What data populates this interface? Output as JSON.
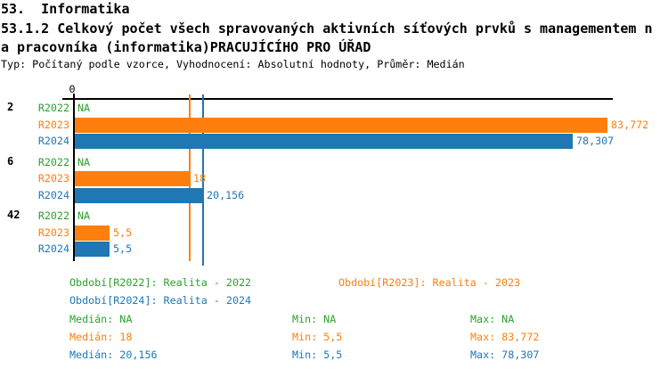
{
  "header": {
    "section_title": "53.  Informatika",
    "indicator_line1": "53.1.2 Celkový počet všech spravovaných aktivních síťových prvků s managementem n",
    "indicator_line2": "a pracovníka (informatika)PRACUJÍCÍHO PRO ÚŘAD",
    "meta": "Typ: Počítaný podle vzorce, Vyhodnocení: Absolutní hodnoty, Průměr: Medián"
  },
  "colors": {
    "green": "#2ca02c",
    "orange": "#ff7f0e",
    "blue": "#1f77b4",
    "axis": "#000000"
  },
  "chart_data": {
    "type": "bar",
    "orientation": "horizontal",
    "categories": [
      "2",
      "6",
      "42"
    ],
    "na_text": "NA",
    "x_axis": {
      "tick_labels": [
        "0"
      ],
      "xlim": [
        0,
        84.6
      ],
      "grid": false
    },
    "series": [
      {
        "name": "R2022",
        "color": "#2ca02c",
        "values": [
          null,
          null,
          null
        ],
        "value_labels": [
          "NA",
          "NA",
          "NA"
        ]
      },
      {
        "name": "R2023",
        "color": "#ff7f0e",
        "values": [
          83.772,
          18,
          5.5
        ],
        "value_labels": [
          "83,772",
          "18",
          "5,5"
        ]
      },
      {
        "name": "R2024",
        "color": "#1f77b4",
        "values": [
          78.307,
          20.156,
          5.5
        ],
        "value_labels": [
          "78,307",
          "20,156",
          "5,5"
        ]
      }
    ],
    "median_lines": [
      {
        "series": "R2023",
        "value": 18,
        "color": "#ff7f0e"
      },
      {
        "series": "R2024",
        "value": 20.156,
        "color": "#1f77b4"
      }
    ]
  },
  "legend": {
    "period_entries": [
      {
        "label": "Období[R2022]: Realita - 2022",
        "color": "#2ca02c"
      },
      {
        "label": "Období[R2023]: Realita - 2023",
        "color": "#ff7f0e"
      },
      {
        "label": "Období[R2024]: Realita - 2024",
        "color": "#1f77b4"
      }
    ],
    "stats_rows": [
      {
        "color": "#2ca02c",
        "median": "Medián: NA",
        "min": "Min: NA",
        "max": "Max: NA"
      },
      {
        "color": "#ff7f0e",
        "median": "Medián: 18",
        "min": "Min: 5,5",
        "max": "Max: 83,772"
      },
      {
        "color": "#1f77b4",
        "median": "Medián: 20,156",
        "min": "Min: 5,5",
        "max": "Max: 78,307"
      }
    ]
  }
}
